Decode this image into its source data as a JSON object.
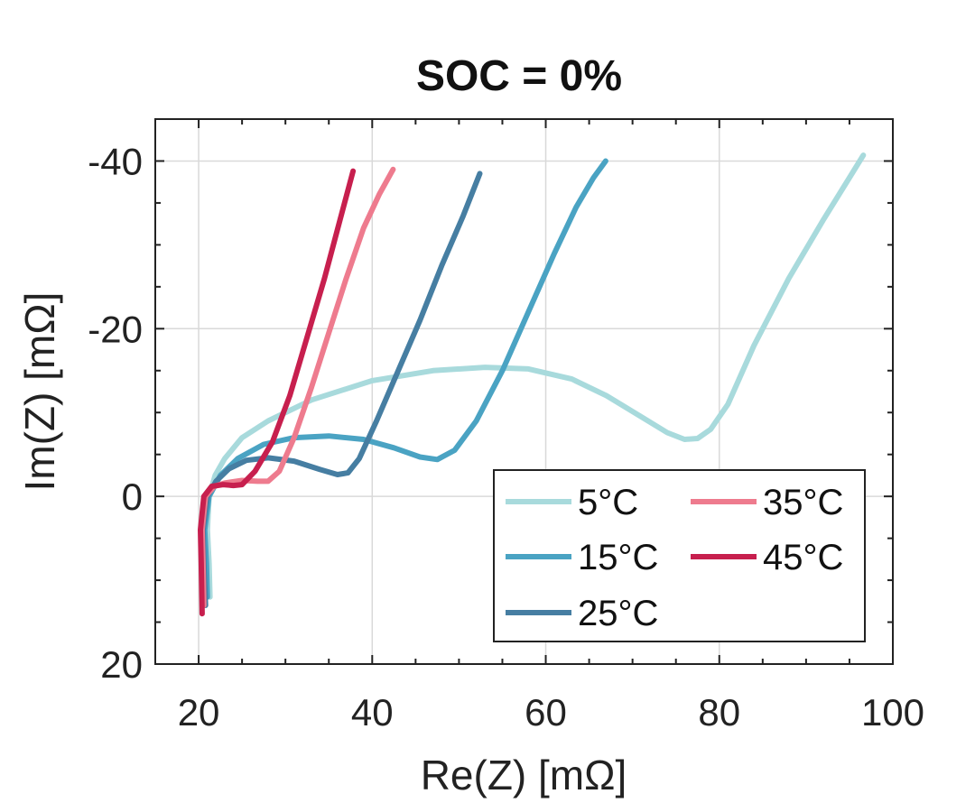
{
  "chart_data": {
    "type": "line",
    "title": "SOC = 0%",
    "xlabel": "Re(Z) [mΩ]",
    "ylabel": "Im(Z) [mΩ]",
    "xlim": [
      15,
      100
    ],
    "ylim": [
      20,
      -45
    ],
    "xticks": [
      20,
      40,
      60,
      80,
      100
    ],
    "xtick_labels": [
      "20",
      "40",
      "60",
      "80",
      "100"
    ],
    "yticks": [
      -40,
      -20,
      0,
      20
    ],
    "ytick_labels": [
      "-40",
      "-20",
      "0",
      "20"
    ],
    "grid": true,
    "legend_position": "bottom-right",
    "series": [
      {
        "name": "5°C",
        "color": "#a8dadc",
        "x": [
          21.3,
          21.2,
          21.0,
          21.2,
          21.9,
          23.0,
          25.0,
          28.0,
          33.0,
          40.0,
          47.0,
          53.0,
          58.0,
          63.0,
          67.0,
          71.0,
          74.0,
          76.0,
          77.5,
          79.0,
          81.0,
          84.0,
          88.0,
          92.0,
          95.0,
          96.6
        ],
        "y": [
          12.0,
          8.0,
          4.0,
          0.0,
          -2.5,
          -4.5,
          -7.0,
          -9.0,
          -11.5,
          -13.8,
          -15.0,
          -15.4,
          -15.2,
          -14.0,
          -12.0,
          -9.5,
          -7.6,
          -6.8,
          -6.9,
          -8.0,
          -11.0,
          -18.0,
          -26.0,
          -33.0,
          -38.0,
          -40.7
        ]
      },
      {
        "name": "15°C",
        "color": "#4aa3c3",
        "x": [
          21.0,
          20.9,
          20.7,
          21.2,
          22.5,
          24.5,
          27.5,
          31.0,
          35.0,
          39.0,
          42.5,
          45.5,
          47.5,
          49.5,
          52.0,
          55.0,
          58.0,
          61.0,
          63.5,
          65.5,
          66.9
        ],
        "y": [
          12.0,
          8.0,
          4.0,
          0.0,
          -2.5,
          -4.5,
          -6.2,
          -7.0,
          -7.2,
          -6.8,
          -5.8,
          -4.7,
          -4.4,
          -5.5,
          -9.0,
          -15.0,
          -22.0,
          -29.0,
          -34.5,
          -38.0,
          -40.0
        ]
      },
      {
        "name": "25°C",
        "color": "#467ea2",
        "x": [
          20.8,
          20.6,
          20.5,
          21.0,
          22.0,
          23.5,
          25.5,
          28.0,
          31.0,
          34.0,
          36.0,
          37.2,
          38.5,
          40.5,
          43.0,
          45.5,
          48.0,
          50.5,
          52.4
        ],
        "y": [
          13.0,
          8.0,
          4.0,
          0.0,
          -1.8,
          -3.3,
          -4.3,
          -4.6,
          -4.2,
          -3.2,
          -2.6,
          -2.8,
          -4.5,
          -9.0,
          -15.0,
          -21.0,
          -27.5,
          -33.5,
          -38.5
        ]
      },
      {
        "name": "35°C",
        "color": "#ee7b8e",
        "x": [
          20.6,
          20.5,
          20.4,
          20.8,
          21.8,
          23.0,
          25.0,
          26.8,
          28.0,
          29.3,
          31.0,
          33.0,
          35.0,
          37.0,
          39.0,
          40.8,
          42.4
        ],
        "y": [
          13.0,
          8.0,
          4.0,
          0.0,
          -1.2,
          -1.6,
          -1.9,
          -1.8,
          -1.8,
          -3.0,
          -7.0,
          -13.0,
          -19.5,
          -26.0,
          -32.0,
          -36.0,
          -39.0
        ]
      },
      {
        "name": "45°C",
        "color": "#c71f4e",
        "x": [
          20.4,
          20.3,
          20.2,
          20.6,
          21.5,
          22.8,
          24.0,
          25.0,
          26.5,
          28.5,
          30.5,
          32.5,
          34.5,
          36.3,
          37.8
        ],
        "y": [
          14.0,
          8.0,
          4.0,
          0.0,
          -1.2,
          -1.4,
          -1.3,
          -1.4,
          -3.0,
          -6.5,
          -12.0,
          -19.0,
          -26.0,
          -33.0,
          -38.8
        ]
      }
    ]
  }
}
